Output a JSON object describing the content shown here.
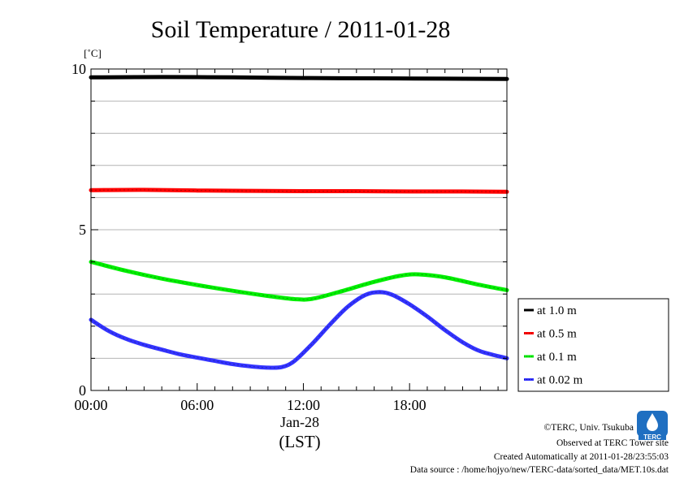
{
  "title": "Soil Temperature / 2011-01-28",
  "y_unit": "[˚C]",
  "x_date_label": "Jan-28",
  "x_zone_label": "(LST)",
  "credits": {
    "copyright": "©TERC, Univ. Tsukuba",
    "site": "Observed at TERC Tower site",
    "created": "Created Automatically at 2011-01-28/23:55:03",
    "source": "Data source : /home/hojyo/new/TERC-data/sorted_data/MET.10s.dat"
  },
  "logo_text": "TERC",
  "chart_data": {
    "type": "line",
    "title": "Soil Temperature / 2011-01-28",
    "xlabel": "(LST)",
    "ylabel": "[˚C]",
    "xlim": [
      0,
      23.5
    ],
    "ylim": [
      0,
      10
    ],
    "x_ticks": [
      0,
      6,
      12,
      18
    ],
    "x_tick_labels": [
      "00:00",
      "06:00",
      "12:00",
      "18:00"
    ],
    "y_ticks": [
      0,
      5,
      10
    ],
    "y_tick_labels": [
      "0",
      "5",
      "10"
    ],
    "grid": true,
    "grid_step_y": 1,
    "legend_position": "right",
    "series": [
      {
        "name": "at 1.0 m",
        "color": "#000000",
        "points": [
          [
            0,
            9.74
          ],
          [
            4,
            9.75
          ],
          [
            8,
            9.74
          ],
          [
            12,
            9.72
          ],
          [
            16,
            9.71
          ],
          [
            20,
            9.7
          ],
          [
            23.5,
            9.69
          ]
        ]
      },
      {
        "name": "at 0.5 m",
        "color": "#ff0000",
        "points": [
          [
            0,
            6.23
          ],
          [
            3,
            6.24
          ],
          [
            6,
            6.22
          ],
          [
            9,
            6.21
          ],
          [
            12,
            6.2
          ],
          [
            15,
            6.2
          ],
          [
            18,
            6.19
          ],
          [
            21,
            6.19
          ],
          [
            23.5,
            6.18
          ]
        ]
      },
      {
        "name": "at 0.1 m",
        "color": "#00ee00",
        "points": [
          [
            0,
            4.0
          ],
          [
            2,
            3.72
          ],
          [
            4,
            3.48
          ],
          [
            6,
            3.28
          ],
          [
            8,
            3.1
          ],
          [
            10,
            2.94
          ],
          [
            11.5,
            2.84
          ],
          [
            12.5,
            2.85
          ],
          [
            14,
            3.06
          ],
          [
            16,
            3.38
          ],
          [
            17.5,
            3.57
          ],
          [
            18.5,
            3.61
          ],
          [
            20,
            3.52
          ],
          [
            22,
            3.28
          ],
          [
            23.5,
            3.12
          ]
        ]
      },
      {
        "name": "at 0.02 m",
        "color": "#3333ff",
        "points": [
          [
            0,
            2.2
          ],
          [
            1,
            1.85
          ],
          [
            2,
            1.6
          ],
          [
            3,
            1.42
          ],
          [
            4,
            1.27
          ],
          [
            5,
            1.13
          ],
          [
            6,
            1.02
          ],
          [
            7,
            0.92
          ],
          [
            8,
            0.82
          ],
          [
            9,
            0.75
          ],
          [
            10,
            0.71
          ],
          [
            10.8,
            0.73
          ],
          [
            11.5,
            0.92
          ],
          [
            12.5,
            1.45
          ],
          [
            13.5,
            2.05
          ],
          [
            14.5,
            2.6
          ],
          [
            15.5,
            2.97
          ],
          [
            16.3,
            3.06
          ],
          [
            17,
            2.98
          ],
          [
            18,
            2.68
          ],
          [
            19,
            2.3
          ],
          [
            20,
            1.88
          ],
          [
            21,
            1.5
          ],
          [
            22,
            1.22
          ],
          [
            23.5,
            1.0
          ]
        ]
      }
    ]
  }
}
